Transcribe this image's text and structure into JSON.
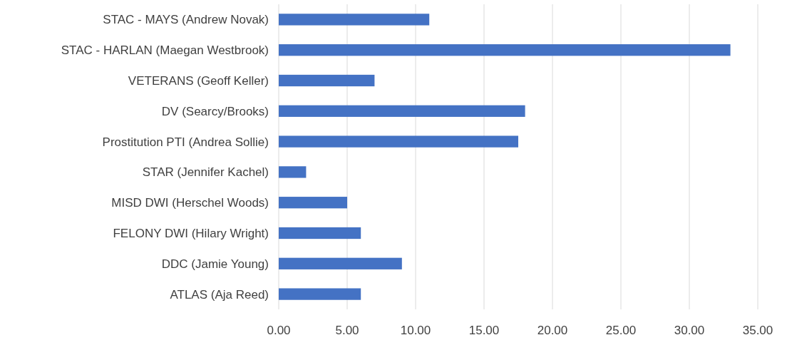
{
  "chart_data": {
    "type": "bar",
    "orientation": "horizontal",
    "categories": [
      "STAC - MAYS (Andrew Novak)",
      "STAC - HARLAN (Maegan Westbrook)",
      "VETERANS (Geoff Keller)",
      "DV (Searcy/Brooks)",
      "Prostitution PTI (Andrea Sollie)",
      "STAR (Jennifer Kachel)",
      "MISD DWI (Herschel Woods)",
      "FELONY DWI (Hilary Wright)",
      "DDC (Jamie Young)",
      "ATLAS (Aja Reed)"
    ],
    "values": [
      11,
      33,
      7,
      18,
      17.5,
      2,
      5,
      6,
      9,
      6
    ],
    "color": "#4472c4",
    "xlim": [
      0,
      35
    ],
    "xticks": [
      {
        "value": 0,
        "label": "0.00"
      },
      {
        "value": 5,
        "label": "5.00"
      },
      {
        "value": 10,
        "label": "10.00"
      },
      {
        "value": 15,
        "label": "15.00"
      },
      {
        "value": 20,
        "label": "20.00"
      },
      {
        "value": 25,
        "label": "25.00"
      },
      {
        "value": 30,
        "label": "30.00"
      },
      {
        "value": 35,
        "label": "35.00"
      }
    ],
    "grid": "x"
  }
}
